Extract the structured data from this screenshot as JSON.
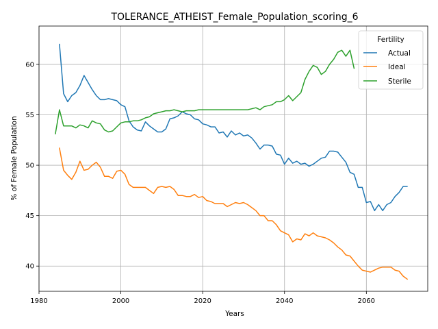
{
  "chart_data": {
    "type": "line",
    "title": "TOLERANCE_ATHEIST_Female_Population_scoring_6",
    "xlabel": "Years",
    "ylabel": "% of Female Population",
    "xlim": [
      1980,
      2075
    ],
    "ylim": [
      37.5,
      63.8
    ],
    "xticks": [
      1980,
      2000,
      2020,
      2040,
      2060
    ],
    "yticks": [
      40,
      45,
      50,
      55,
      60
    ],
    "grid": true,
    "legend": {
      "title": "Fertility",
      "placement": "top-right"
    },
    "series": [
      {
        "name": "Actual",
        "color": "#1f77b4",
        "x": [
          1985,
          1986,
          1987,
          1988,
          1989,
          1990,
          1991,
          1992,
          1993,
          1994,
          1995,
          1996,
          1997,
          1998,
          1999,
          2000,
          2001,
          2002,
          2003,
          2004,
          2005,
          2006,
          2007,
          2008,
          2009,
          2010,
          2011,
          2012,
          2013,
          2014,
          2015,
          2016,
          2017,
          2018,
          2019,
          2020,
          2021,
          2022,
          2023,
          2024,
          2025,
          2026,
          2027,
          2028,
          2029,
          2030,
          2031,
          2032,
          2033,
          2034,
          2035,
          2036,
          2037,
          2038,
          2039,
          2040,
          2041,
          2042,
          2043,
          2044,
          2045,
          2046,
          2047,
          2048,
          2049,
          2050,
          2051,
          2052,
          2053,
          2054,
          2055,
          2056,
          2057,
          2058,
          2059,
          2060,
          2061,
          2062,
          2063,
          2064,
          2065,
          2066,
          2067,
          2068,
          2069,
          2070
        ],
        "values": [
          62.0,
          57.1,
          56.3,
          56.9,
          57.2,
          57.9,
          58.9,
          58.2,
          57.5,
          56.9,
          56.5,
          56.5,
          56.6,
          56.5,
          56.4,
          56.0,
          55.8,
          54.4,
          53.8,
          53.5,
          53.4,
          54.3,
          53.9,
          53.6,
          53.3,
          53.3,
          53.6,
          54.6,
          54.7,
          54.9,
          55.3,
          55.1,
          55.0,
          54.6,
          54.5,
          54.1,
          54.0,
          53.8,
          53.8,
          53.2,
          53.3,
          52.8,
          53.4,
          53.0,
          53.2,
          52.9,
          53.0,
          52.7,
          52.2,
          51.6,
          52.0,
          52.0,
          51.9,
          51.1,
          51.0,
          50.1,
          50.7,
          50.2,
          50.4,
          50.1,
          50.2,
          49.9,
          50.1,
          50.4,
          50.7,
          50.8,
          51.4,
          51.4,
          51.3,
          50.8,
          50.3,
          49.3,
          49.1,
          47.8,
          47.8,
          46.3,
          46.4,
          45.5,
          46.1,
          45.5,
          46.1,
          46.3,
          46.9,
          47.3,
          47.9,
          47.9
        ]
      },
      {
        "name": "Ideal",
        "color": "#ff7f0e",
        "x": [
          1985,
          1986,
          1987,
          1988,
          1989,
          1990,
          1991,
          1992,
          1993,
          1994,
          1995,
          1996,
          1997,
          1998,
          1999,
          2000,
          2001,
          2002,
          2003,
          2004,
          2005,
          2006,
          2007,
          2008,
          2009,
          2010,
          2011,
          2012,
          2013,
          2014,
          2015,
          2016,
          2017,
          2018,
          2019,
          2020,
          2021,
          2022,
          2023,
          2024,
          2025,
          2026,
          2027,
          2028,
          2029,
          2030,
          2031,
          2032,
          2033,
          2034,
          2035,
          2036,
          2037,
          2038,
          2039,
          2040,
          2041,
          2042,
          2043,
          2044,
          2045,
          2046,
          2047,
          2048,
          2049,
          2050,
          2051,
          2052,
          2053,
          2054,
          2055,
          2056,
          2057,
          2058,
          2059,
          2060,
          2061,
          2062,
          2063,
          2064,
          2065,
          2066,
          2067,
          2068,
          2069,
          2070
        ],
        "values": [
          51.7,
          49.5,
          49.0,
          48.6,
          49.3,
          50.4,
          49.5,
          49.6,
          50.0,
          50.3,
          49.8,
          48.9,
          48.9,
          48.7,
          49.4,
          49.5,
          49.1,
          48.1,
          47.8,
          47.8,
          47.8,
          47.8,
          47.5,
          47.2,
          47.8,
          47.9,
          47.8,
          47.9,
          47.6,
          47.0,
          47.0,
          46.9,
          46.9,
          47.1,
          46.8,
          46.9,
          46.5,
          46.4,
          46.2,
          46.2,
          46.2,
          45.9,
          46.1,
          46.3,
          46.2,
          46.3,
          46.1,
          45.8,
          45.5,
          45.0,
          45.0,
          44.5,
          44.5,
          44.1,
          43.5,
          43.3,
          43.1,
          42.4,
          42.7,
          42.6,
          43.2,
          43.0,
          43.3,
          43.0,
          42.9,
          42.8,
          42.6,
          42.3,
          41.9,
          41.6,
          41.1,
          41.0,
          40.5,
          40.0,
          39.6,
          39.5,
          39.4,
          39.6,
          39.8,
          39.9,
          39.9,
          39.9,
          39.6,
          39.5,
          39.0,
          38.7
        ]
      },
      {
        "name": "Sterile",
        "color": "#2ca02c",
        "x": [
          1984,
          1985,
          1986,
          1987,
          1988,
          1989,
          1990,
          1991,
          1992,
          1993,
          1994,
          1995,
          1996,
          1997,
          1998,
          1999,
          2000,
          2001,
          2002,
          2003,
          2004,
          2005,
          2006,
          2007,
          2008,
          2009,
          2010,
          2011,
          2012,
          2013,
          2014,
          2015,
          2016,
          2017,
          2018,
          2019,
          2020,
          2021,
          2022,
          2023,
          2024,
          2025,
          2026,
          2027,
          2028,
          2029,
          2030,
          2031,
          2032,
          2033,
          2034,
          2035,
          2036,
          2037,
          2038,
          2039,
          2040,
          2041,
          2042,
          2043,
          2044,
          2045,
          2046,
          2047,
          2048,
          2049,
          2050,
          2051,
          2052,
          2053,
          2054,
          2055,
          2056,
          2057
        ],
        "values": [
          53.1,
          55.5,
          53.9,
          53.9,
          53.9,
          53.7,
          54.0,
          53.9,
          53.7,
          54.4,
          54.2,
          54.1,
          53.5,
          53.3,
          53.4,
          53.8,
          54.2,
          54.3,
          54.3,
          54.4,
          54.4,
          54.5,
          54.7,
          54.8,
          55.1,
          55.2,
          55.3,
          55.4,
          55.4,
          55.5,
          55.4,
          55.3,
          55.4,
          55.4,
          55.4,
          55.5,
          55.5,
          55.5,
          55.5,
          55.5,
          55.5,
          55.5,
          55.5,
          55.5,
          55.5,
          55.5,
          55.5,
          55.5,
          55.6,
          55.7,
          55.5,
          55.8,
          55.9,
          56.0,
          56.3,
          56.3,
          56.5,
          56.9,
          56.4,
          56.8,
          57.2,
          58.5,
          59.3,
          59.9,
          59.7,
          59.0,
          59.3,
          60.0,
          60.5,
          61.2,
          61.4,
          60.8,
          61.4,
          59.6
        ]
      }
    ]
  }
}
